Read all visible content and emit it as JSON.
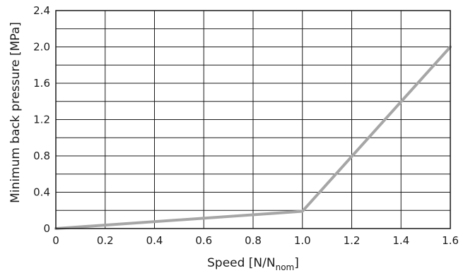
{
  "chart_data": {
    "type": "line",
    "title": "",
    "xlabel": {
      "main": "Speed [N/N",
      "sub": "nom",
      "end": "]"
    },
    "ylabel": "Minimum back pressure [MPa]",
    "xlim": [
      0,
      1.6
    ],
    "ylim": [
      0,
      2.4
    ],
    "x_ticks": [
      "0",
      "0.2",
      "0.4",
      "0.6",
      "0.8",
      "1.0",
      "1.2",
      "1.4",
      "1.6"
    ],
    "y_ticks": [
      "0",
      "0.4",
      "0.8",
      "1.2",
      "1.6",
      "2.0",
      "2.4"
    ],
    "x_grid_step": 0.2,
    "y_grid_step": 0.2,
    "grid": true,
    "line_color": "#a6a6a6",
    "series": [
      {
        "x": [
          0,
          1.0,
          1.6
        ],
        "y": [
          0,
          0.19,
          2.0
        ]
      }
    ]
  }
}
